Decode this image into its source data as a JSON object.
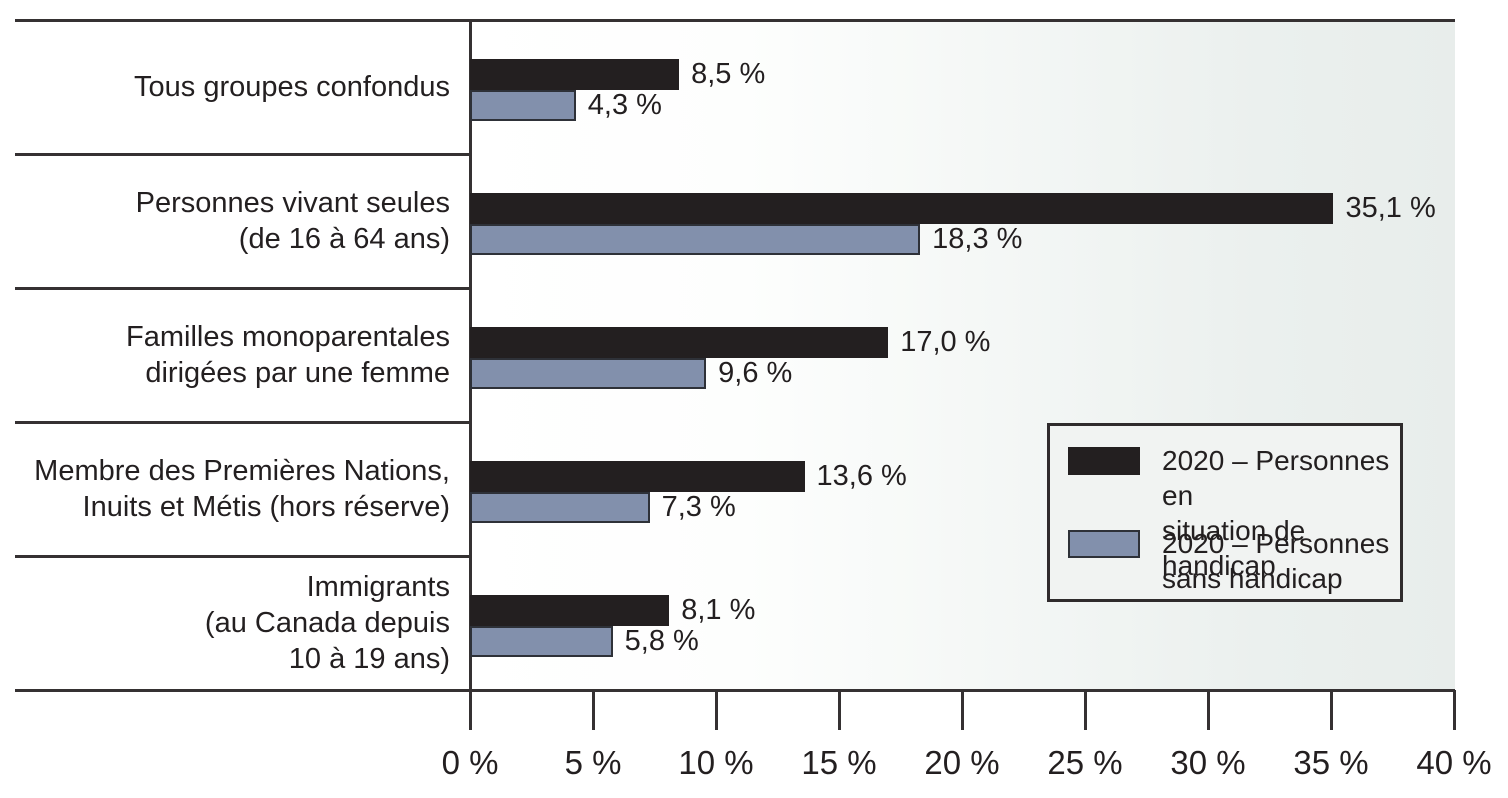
{
  "chart_data": {
    "type": "bar",
    "orientation": "horizontal",
    "title": "",
    "xlabel": "",
    "ylabel": "",
    "xlim": [
      0,
      40
    ],
    "x_ticks": [
      "0 %",
      "5 %",
      "10 %",
      "15 %",
      "20 %",
      "25 %",
      "30 %",
      "35 %",
      "40 %"
    ],
    "grid": false,
    "categories": [
      "Tous groupes confondus",
      "Personnes vivant seules (de 16 à 64 ans)",
      "Familles monoparentales dirigées par une femme",
      "Membre des Premières Nations, Inuits et Métis (hors réserve)",
      "Immigrants (au Canada depuis 10 à 19 ans)"
    ],
    "category_lines": [
      [
        "Tous groupes confondus"
      ],
      [
        "Personnes vivant seules",
        "(de 16 à 64 ans)"
      ],
      [
        "Familles monoparentales",
        "dirigées par une femme"
      ],
      [
        "Membre des Premières Nations,",
        "Inuits et Métis (hors réserve)"
      ],
      [
        "Immigrants",
        "(au Canada depuis",
        "10 à 19 ans)"
      ]
    ],
    "series": [
      {
        "name": "2020 – Personnes en situation de handicap",
        "legend_lines": [
          "2020 – Personnes en",
          "situation de handicap"
        ],
        "color": "#231f20",
        "values": [
          8.5,
          35.1,
          17.0,
          13.6,
          8.1
        ],
        "labels": [
          "8,5 %",
          "35,1 %",
          "17,0 %",
          "13,6 %",
          "8,1 %"
        ]
      },
      {
        "name": "2020 – Personnes sans handicap",
        "legend_lines": [
          "2020 – Personnes",
          "sans handicap"
        ],
        "color": "#8290ac",
        "values": [
          4.3,
          18.3,
          9.6,
          7.3,
          5.8
        ],
        "labels": [
          "4,3 %",
          "18,3 %",
          "9,6 %",
          "7,3 %",
          "5,8 %"
        ]
      }
    ],
    "legend_position": "middle-right"
  },
  "colors": {
    "series_disability": "#231f20",
    "series_no_disability": "#8290ac",
    "bar_outline": "#2e3138",
    "axis_line": "#353132",
    "plot_bg_left": "#ffffff",
    "plot_bg_right": "#e8edeb",
    "legend_bg": "#f1f3f2",
    "text": "#231f20"
  }
}
